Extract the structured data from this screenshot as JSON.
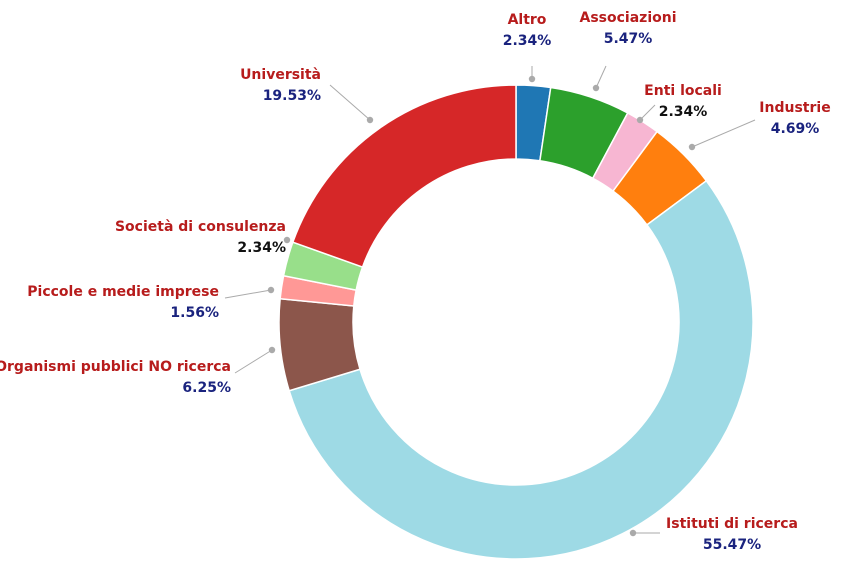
{
  "chart_data": {
    "type": "pie",
    "donut": true,
    "slices": [
      {
        "name": "Altro",
        "value": 2.34,
        "label": "2.34%",
        "color": "#1f77b4",
        "pct_color": "#1a237e"
      },
      {
        "name": "Associazioni",
        "value": 5.47,
        "label": "5.47%",
        "color": "#2ca02c",
        "pct_color": "#1a237e"
      },
      {
        "name": "Enti locali",
        "value": 2.34,
        "label": "2.34%",
        "color": "#f7b6d2",
        "pct_color": "#111111"
      },
      {
        "name": "Industrie",
        "value": 4.69,
        "label": "4.69%",
        "color": "#ff7f0e",
        "pct_color": "#1a237e"
      },
      {
        "name": "Istituti di ricerca",
        "value": 55.47,
        "label": "55.47%",
        "color": "#9edae5",
        "pct_color": "#1a237e"
      },
      {
        "name": "Organismi pubblici NO ricerca",
        "value": 6.25,
        "label": "6.25%",
        "color": "#8c564b",
        "pct_color": "#1a237e"
      },
      {
        "name": "Piccole e medie imprese",
        "value": 1.56,
        "label": "1.56%",
        "color": "#ff9896",
        "pct_color": "#1a237e"
      },
      {
        "name": "Società di consulenza",
        "value": 2.34,
        "label": "2.34%",
        "color": "#98df8a",
        "pct_color": "#111111"
      },
      {
        "name": "Università",
        "value": 19.53,
        "label": "19.53%",
        "color": "#d62728",
        "pct_color": "#1a237e"
      }
    ],
    "name_color": "#b71c1c",
    "leader_color": "#aaaaaa"
  }
}
